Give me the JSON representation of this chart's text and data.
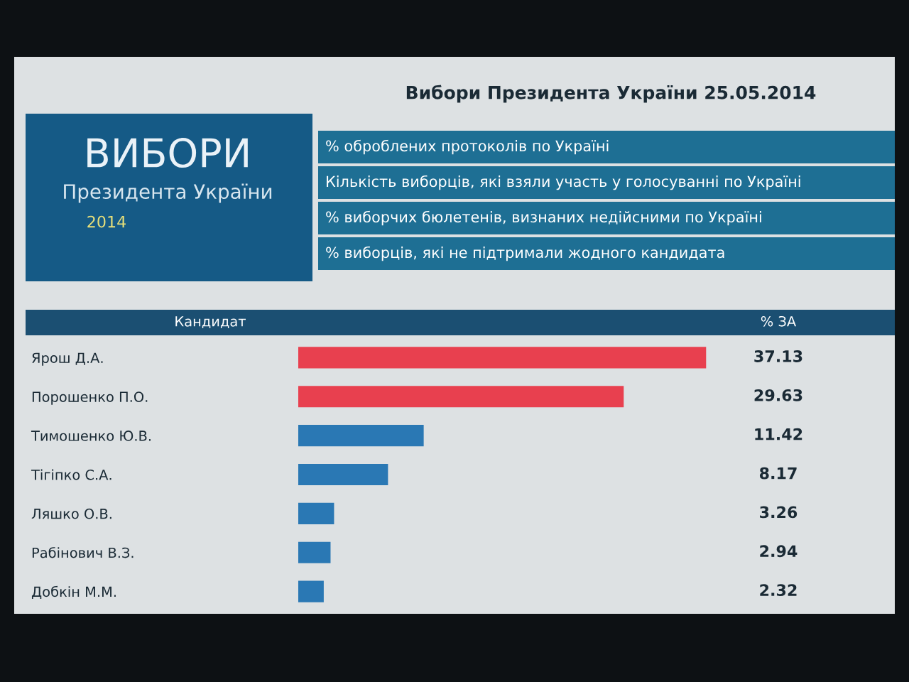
{
  "chart_data": {
    "type": "bar",
    "orientation": "horizontal",
    "title": "Вибори Президента України 25.05.2014",
    "categories": [
      "Ярош Д.А.",
      "Порошенко П.О.",
      "Тимошенко Ю.В.",
      "Тігіпко С.А.",
      "Ляшко О.В.",
      "Рабінович В.З.",
      "Добкін М.М."
    ],
    "values": [
      37.13,
      29.63,
      11.42,
      8.17,
      3.26,
      2.94,
      2.32
    ],
    "colors": [
      "#e8404f",
      "#e8404f",
      "#2a78b4",
      "#2a78b4",
      "#2a78b4",
      "#2a78b4",
      "#2a78b4"
    ],
    "xlim": [
      0,
      37.5
    ],
    "data_labels": true,
    "grid": false,
    "legend": false,
    "tick_labels": "y",
    "annotations": [
      "ВИБОРИ",
      "Президента України",
      "2014",
      "% оброблених протоколів по Україні",
      "Кількість виборців, які взяли участь у голосуванні по Україні",
      "% виборчих бюлетенів, визнаних недійсними по Україні",
      "% виборців, які не підтримали жодного кандидата",
      "Кандидат",
      "% ЗА"
    ]
  }
}
